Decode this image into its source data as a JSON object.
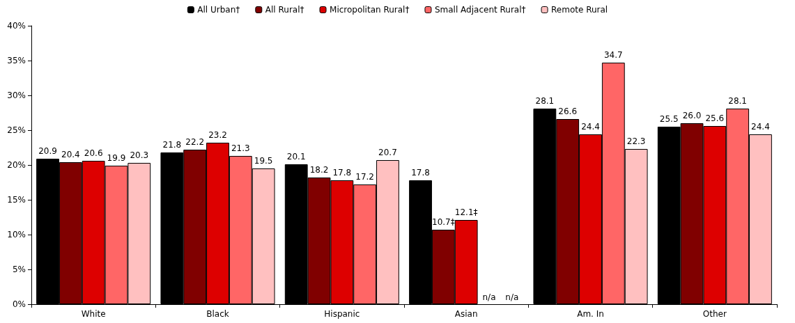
{
  "chart_data": {
    "type": "bar",
    "categories": [
      "White",
      "Black",
      "Hispanic",
      "Asian",
      "Am. In",
      "Other"
    ],
    "series": [
      {
        "name": "All Urban†",
        "color": "#000000",
        "values": [
          20.9,
          21.8,
          20.1,
          17.8,
          28.1,
          25.5
        ],
        "value_labels": [
          "20.9",
          "21.8",
          "20.1",
          "17.8",
          "28.1",
          "25.5"
        ]
      },
      {
        "name": "All Rural†",
        "color": "#800000",
        "values": [
          20.4,
          22.2,
          18.2,
          10.7,
          26.6,
          26.0
        ],
        "value_labels": [
          "20.4",
          "22.2",
          "18.2",
          "10.7‡",
          "26.6",
          "26.0"
        ]
      },
      {
        "name": "Micropolitan Rural†",
        "color": "#dd0000",
        "values": [
          20.6,
          23.2,
          17.8,
          12.1,
          24.4,
          25.6
        ],
        "value_labels": [
          "20.6",
          "23.2",
          "17.8",
          "12.1‡",
          "24.4",
          "25.6"
        ]
      },
      {
        "name": "Small Adjacent Rural†",
        "color": "#ff6666",
        "values": [
          19.9,
          21.3,
          17.2,
          null,
          34.7,
          28.1
        ],
        "value_labels": [
          "19.9",
          "21.3",
          "17.2",
          "n/a",
          "34.7",
          "28.1"
        ]
      },
      {
        "name": "Remote Rural",
        "color": "#ffc0c0",
        "values": [
          20.3,
          19.5,
          20.7,
          null,
          22.3,
          24.4
        ],
        "value_labels": [
          "20.3",
          "19.5",
          "20.7",
          "n/a",
          "22.3",
          "24.4"
        ]
      }
    ],
    "ylim": [
      0,
      40
    ],
    "yticks": [
      {
        "value": 0,
        "label": "0%"
      },
      {
        "value": 5,
        "label": "5%"
      },
      {
        "value": 10,
        "label": "10%"
      },
      {
        "value": 15,
        "label": "15%"
      },
      {
        "value": 20,
        "label": "20%"
      },
      {
        "value": 25,
        "label": "25%"
      },
      {
        "value": 30,
        "label": "30%"
      },
      {
        "value": 35,
        "label": "35%"
      },
      {
        "value": 40,
        "label": "40%"
      }
    ],
    "grid": false,
    "legend": "top"
  }
}
